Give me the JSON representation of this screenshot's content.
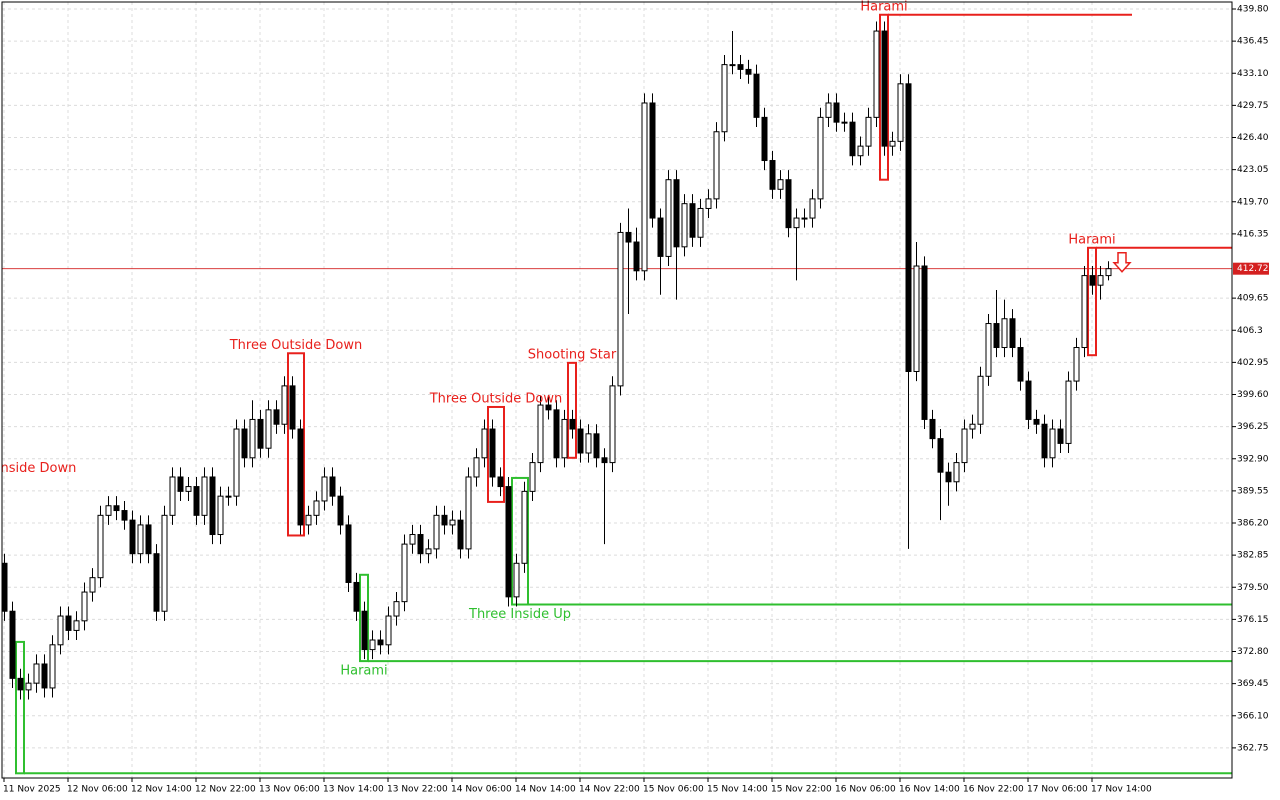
{
  "chart_data": {
    "type": "candlestick",
    "categories": [
      "11 Nov 2025",
      null,
      null,
      null,
      null,
      null,
      null,
      null,
      "12 Nov 06:00",
      null,
      null,
      null,
      null,
      null,
      null,
      null,
      "12 Nov 14:00",
      null,
      null,
      null,
      null,
      null,
      null,
      null,
      "12 Nov 22:00",
      null,
      null,
      null,
      null,
      null,
      null,
      null,
      "13 Nov 06:00",
      null,
      null,
      null,
      null,
      null,
      null,
      null,
      "13 Nov 14:00",
      null,
      null,
      null,
      null,
      null,
      null,
      null,
      "13 Nov 22:00",
      null,
      null,
      null,
      null,
      null,
      null,
      null,
      "14 Nov 06:00",
      null,
      null,
      null,
      null,
      null,
      null,
      null,
      "14 Nov 14:00",
      null,
      null,
      null,
      null,
      null,
      null,
      null,
      "14 Nov 22:00",
      null,
      null,
      null,
      null,
      null,
      null,
      null,
      "15 Nov 06:00",
      null,
      null,
      null,
      null,
      null,
      null,
      null,
      "15 Nov 14:00",
      null,
      null,
      null,
      null,
      null,
      null,
      null,
      "15 Nov 22:00",
      null,
      null,
      null,
      null,
      null,
      null,
      null,
      "16 Nov 06:00",
      null,
      null,
      null,
      null,
      null,
      null,
      null,
      "16 Nov 14:00",
      null,
      null,
      null,
      null,
      null,
      null,
      null,
      "16 Nov 22:00",
      null,
      null,
      null,
      null,
      null,
      null,
      null,
      "17 Nov 06:00",
      null,
      null,
      null,
      null,
      null,
      null,
      null,
      "17 Nov 14:00",
      null,
      null
    ],
    "open": [
      382,
      377,
      370,
      368.8,
      369.5,
      371.5,
      369,
      373.5,
      376.5,
      375,
      376,
      379,
      380.5,
      387,
      388,
      387.5,
      386.5,
      383,
      386,
      383,
      377,
      387,
      391,
      389.5,
      390,
      387,
      391,
      385,
      389,
      389,
      396,
      393,
      397,
      394,
      398,
      396.5,
      400.5,
      396,
      386,
      387,
      388.5,
      391,
      389,
      386,
      380,
      377,
      373,
      374,
      373.5,
      376.5,
      378,
      384,
      385,
      383,
      383.5,
      387,
      386,
      386.5,
      383.5,
      391,
      393,
      396,
      391,
      390,
      378.5,
      382,
      389.5,
      392.5,
      398.5,
      398,
      393,
      397,
      396,
      393.5,
      395.5,
      393,
      392.5,
      400.5,
      416.5,
      415.5,
      412.5,
      430,
      418,
      414,
      422,
      415,
      419.5,
      416,
      419,
      420,
      427,
      434,
      434,
      433.5,
      433,
      428.5,
      424,
      421,
      422,
      417,
      418,
      418,
      420,
      428.5,
      430,
      428,
      428,
      424.5,
      425.5,
      428.5,
      437.5,
      425.5,
      426,
      432,
      402,
      413,
      397,
      395,
      391.5,
      390.5,
      392.5,
      396,
      396.5,
      401.5,
      407,
      404.5,
      407.5,
      404.5,
      401,
      397,
      396.5,
      393,
      396,
      394.5,
      401,
      404.5,
      412,
      411,
      412
    ],
    "high": [
      383,
      378,
      371,
      370.5,
      372.5,
      372.5,
      374.5,
      377.5,
      377.5,
      377,
      380,
      381.5,
      388,
      389,
      389,
      388.5,
      387.5,
      387,
      387,
      384,
      388,
      392,
      392,
      391,
      391,
      392,
      392,
      390,
      390,
      397,
      397,
      399,
      398,
      399,
      399,
      401.5,
      401.5,
      397,
      388,
      389.5,
      392,
      392,
      390,
      387,
      381,
      378,
      375,
      375,
      377.5,
      379,
      385,
      386,
      386,
      384.5,
      388,
      388,
      387.5,
      387.5,
      392,
      394,
      397,
      397,
      392,
      391,
      383,
      390.5,
      393.5,
      399.5,
      399.5,
      399,
      398,
      398,
      397,
      396.5,
      396.5,
      394,
      401.5,
      417.5,
      419,
      417,
      431,
      431,
      419,
      423,
      423,
      420.5,
      420.5,
      420,
      421,
      428,
      435,
      437.5,
      435,
      434.5,
      434,
      429.5,
      425,
      423,
      423,
      419,
      419,
      421,
      429.5,
      431,
      431,
      429,
      429,
      426.5,
      429.5,
      438.5,
      438.5,
      427,
      433,
      433,
      415.5,
      414,
      398,
      396,
      392.5,
      393.5,
      397,
      397.5,
      402.5,
      408,
      410.5,
      409.5,
      408.5,
      405.5,
      402,
      398,
      397.5,
      397,
      397,
      402,
      405.5,
      413,
      413,
      413,
      413.5
    ],
    "low": [
      376,
      369,
      367.8,
      367.8,
      368.5,
      368,
      368,
      372.5,
      374,
      374,
      375,
      378,
      379.5,
      386,
      386.5,
      385.5,
      382,
      382,
      382,
      376,
      376,
      386,
      388.5,
      388.5,
      386,
      386,
      384,
      384,
      388,
      388,
      392,
      392,
      393,
      393,
      395.5,
      395.5,
      395,
      385,
      385,
      386,
      387.5,
      388,
      385,
      379,
      376,
      372,
      372,
      372.5,
      372.5,
      375.5,
      377,
      383,
      382,
      382,
      382.5,
      385,
      385,
      382.5,
      382.5,
      390,
      392,
      390,
      389,
      377.5,
      377.5,
      381,
      388.5,
      391.5,
      397,
      392,
      392,
      395,
      392.5,
      392.5,
      392,
      384,
      391.5,
      399.5,
      408,
      411.5,
      411.5,
      417,
      410,
      413,
      409.5,
      414,
      415,
      415,
      418,
      419,
      426,
      433,
      432.5,
      432,
      427.5,
      423,
      420,
      420,
      416,
      411.5,
      417,
      417,
      419,
      427.5,
      427,
      427,
      423.5,
      423.5,
      424.5,
      427.5,
      424.5,
      424.5,
      425,
      383.5,
      401,
      396,
      394,
      386.5,
      388,
      389.5,
      391.5,
      395,
      395.5,
      400.5,
      403.5,
      403.5,
      403.5,
      400,
      396,
      395.5,
      392,
      392,
      393.5,
      393.5,
      400,
      403.5,
      410,
      409.5,
      411.5
    ],
    "close": [
      377,
      370,
      368.8,
      369.5,
      371.5,
      369,
      373.5,
      376.5,
      375,
      376,
      379,
      380.5,
      387,
      388,
      387.5,
      386.5,
      383,
      386,
      383,
      377,
      387,
      391,
      389.5,
      390,
      387,
      391,
      385,
      389,
      389,
      396,
      393,
      397,
      394,
      398,
      396.5,
      400.5,
      396,
      386,
      387,
      388.5,
      391,
      389,
      386,
      380,
      377,
      373,
      374,
      373.5,
      376.5,
      378,
      384,
      385,
      383,
      383.5,
      387,
      386,
      386.5,
      383.5,
      391,
      393,
      396,
      391,
      390,
      378.5,
      382,
      389.5,
      392.5,
      398.5,
      398,
      393,
      397,
      396,
      393.5,
      395.5,
      393,
      392.5,
      400.5,
      416.5,
      415.5,
      412.5,
      430,
      418,
      414,
      422,
      415,
      419.5,
      416,
      419,
      420,
      427,
      434,
      434,
      433.5,
      433,
      428.5,
      424,
      421,
      422,
      417,
      418,
      418,
      420,
      428.5,
      430,
      428,
      428,
      424.5,
      425.5,
      428.5,
      437.5,
      425.5,
      426,
      432,
      402,
      413,
      397,
      395,
      391.5,
      390.5,
      392.5,
      396,
      396.5,
      401.5,
      407,
      404.5,
      407.5,
      404.5,
      401,
      397,
      396.5,
      393,
      396,
      394.5,
      401,
      404.5,
      412,
      411,
      412,
      412.72
    ],
    "up_color": "#ffffff",
    "down_color": "#000000",
    "ylim": [
      359.61,
      440.53
    ],
    "yticks": [
      {
        "value": 439.8,
        "label": "439.80"
      },
      436.45,
      {
        "value": 433.1,
        "label": "433.10"
      },
      429.75,
      {
        "value": 426.4,
        "label": "426.40"
      },
      423.05,
      {
        "value": 419.7,
        "label": "419.70"
      },
      416.35,
      409.65,
      406.3,
      402.95,
      {
        "value": 399.6,
        "label": "399.60"
      },
      396.25,
      {
        "value": 392.9,
        "label": "392.90"
      },
      389.55,
      {
        "value": 386.2,
        "label": "386.20"
      },
      382.85,
      {
        "value": 379.5,
        "label": "379.50"
      },
      376.15,
      {
        "value": 372.8,
        "label": "372.80"
      },
      369.45,
      {
        "value": 366.1,
        "label": "366.10"
      },
      362.75
    ],
    "grid": true,
    "current_price": {
      "value": 412.72,
      "color": "#d42020"
    },
    "patterns": [
      {
        "label": "nside Down",
        "color": "#e8201c",
        "anchor": [
          4.3,
          391.9
        ]
      },
      {
        "label": "Three Outside Down",
        "color": "#e8201c",
        "side": "above",
        "from": 36,
        "to": 37,
        "box": [
          384.9,
          403.9
        ]
      },
      {
        "label": "Three Outside Down",
        "color": "#e8201c",
        "side": "above",
        "from": 61,
        "to": 62,
        "box": [
          388.4,
          398.3
        ]
      },
      {
        "label": "Shooting Star",
        "color": "#e8201c",
        "side": "above",
        "from": 71,
        "to": 71,
        "box": [
          393,
          402.9
        ]
      },
      {
        "label": "Harami",
        "color": "#e8201c",
        "side": "above",
        "from": 110,
        "to": 110,
        "box": [
          422,
          439.2
        ],
        "level": 439.2,
        "extend_to": 141
      },
      {
        "label": "Harami",
        "color": "#e8201c",
        "side": "above",
        "from": 136,
        "to": 136,
        "box": [
          403.7,
          414.9
        ],
        "level": 414.9,
        "arrow": "down"
      },
      {
        "label": "Three Inside Up",
        "color": "#2fbf2f",
        "side": "below",
        "from": 64,
        "to": 65,
        "box": [
          377.7,
          390.9
        ],
        "level": 377.7
      },
      {
        "label": "Harami",
        "color": "#2fbf2f",
        "side": "below",
        "from": 45,
        "to": 45,
        "box": [
          371.8,
          380.8
        ],
        "level": 371.8
      },
      {
        "color": "#2fbf2f",
        "from": 2,
        "to": 2,
        "box": [
          360.1,
          373.8
        ],
        "level": 360.1
      }
    ]
  }
}
